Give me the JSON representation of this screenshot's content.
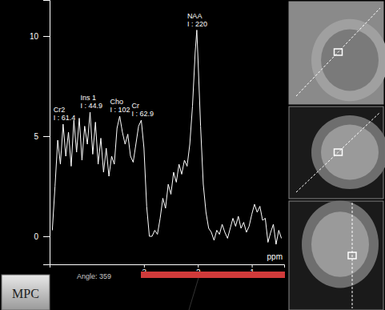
{
  "chart_data": {
    "type": "line",
    "x_label": "ppm",
    "color": "#ffffff",
    "xlim": [
      4.75,
      0.4
    ],
    "xticks": [
      3,
      2,
      1
    ],
    "ylim": [
      -1.4,
      11.8
    ],
    "yticks": [
      0,
      5,
      10
    ],
    "x": [
      4.7,
      4.65,
      4.6,
      4.55,
      4.5,
      4.45,
      4.4,
      4.35,
      4.3,
      4.25,
      4.2,
      4.15,
      4.1,
      4.05,
      4.0,
      3.95,
      3.9,
      3.85,
      3.8,
      3.75,
      3.7,
      3.65,
      3.6,
      3.55,
      3.5,
      3.45,
      3.4,
      3.35,
      3.3,
      3.25,
      3.2,
      3.15,
      3.1,
      3.05,
      3.0,
      2.95,
      2.9,
      2.85,
      2.8,
      2.75,
      2.7,
      2.65,
      2.6,
      2.55,
      2.5,
      2.45,
      2.4,
      2.35,
      2.3,
      2.25,
      2.2,
      2.15,
      2.1,
      2.05,
      2.02,
      2.0,
      1.95,
      1.9,
      1.85,
      1.8,
      1.75,
      1.7,
      1.65,
      1.6,
      1.55,
      1.5,
      1.45,
      1.4,
      1.35,
      1.3,
      1.25,
      1.2,
      1.15,
      1.1,
      1.05,
      1.0,
      0.95,
      0.9,
      0.85,
      0.8,
      0.75,
      0.7,
      0.65,
      0.6,
      0.55,
      0.5,
      0.45
    ],
    "values": [
      0.3,
      2.5,
      4.8,
      3.6,
      5.6,
      4.0,
      5.2,
      3.5,
      5.8,
      4.2,
      5.9,
      3.8,
      5.5,
      4.6,
      6.2,
      4.1,
      5.7,
      3.6,
      4.9,
      3.2,
      4.4,
      3.0,
      4.0,
      3.6,
      5.4,
      6.0,
      5.2,
      4.6,
      5.1,
      4.0,
      3.7,
      4.6,
      5.5,
      5.8,
      4.4,
      1.5,
      0.0,
      0.0,
      0.3,
      0.1,
      0.9,
      1.9,
      1.4,
      2.6,
      2.1,
      3.2,
      2.7,
      3.6,
      3.1,
      3.8,
      3.5,
      4.6,
      6.5,
      9.2,
      10.3,
      9.0,
      5.5,
      2.6,
      1.2,
      0.4,
      0.2,
      -0.2,
      0.3,
      0.1,
      0.6,
      0.2,
      -0.1,
      0.4,
      0.9,
      0.5,
      1.0,
      0.4,
      0.7,
      0.2,
      0.5,
      1.1,
      1.6,
      1.2,
      1.5,
      0.8,
      0.9,
      -0.3,
      0.2,
      0.6,
      -0.4,
      0.3,
      -0.1
    ],
    "peaks": [
      {
        "name": "Cr2",
        "label": "I : 61.4",
        "x": 4.5,
        "y": 5.6
      },
      {
        "name": "Ins 1",
        "label": "I : 44.9",
        "x": 4.0,
        "y": 6.2
      },
      {
        "name": "Cho",
        "label": "I : 102",
        "x": 3.45,
        "y": 6.0
      },
      {
        "name": "Cr",
        "label": "I : 62.9",
        "x": 3.05,
        "y": 5.8
      },
      {
        "name": "NAA",
        "label": "I : 220",
        "x": 2.02,
        "y": 10.3
      }
    ]
  },
  "panel": {
    "button": "MPC",
    "angle": "Angle: 359"
  }
}
